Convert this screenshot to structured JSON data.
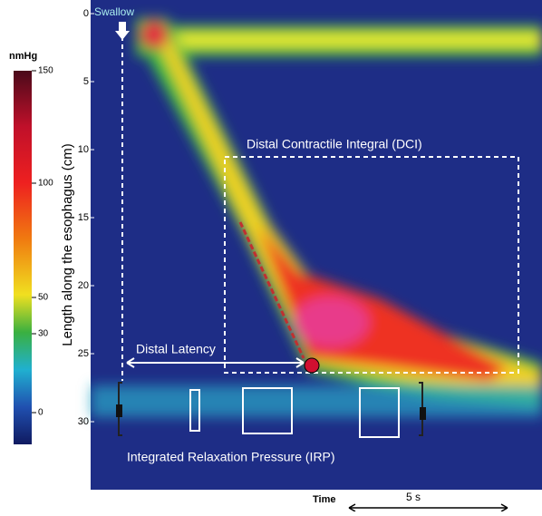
{
  "colorbar": {
    "unit": "nmHg",
    "ticks": [
      150,
      100,
      50,
      30,
      0
    ]
  },
  "axis": {
    "label": "Length along the esophagus (cm)",
    "ticks": [
      0,
      5,
      10,
      15,
      20,
      25,
      30
    ]
  },
  "annotations": {
    "swallow": "Swallow",
    "dci": "Distal Contractile Integral (DCI)",
    "latency": "Distal Latency",
    "irp": "Integrated Relaxation Pressure (IRP)"
  },
  "time": {
    "label": "Time",
    "scale": "5 s"
  }
}
